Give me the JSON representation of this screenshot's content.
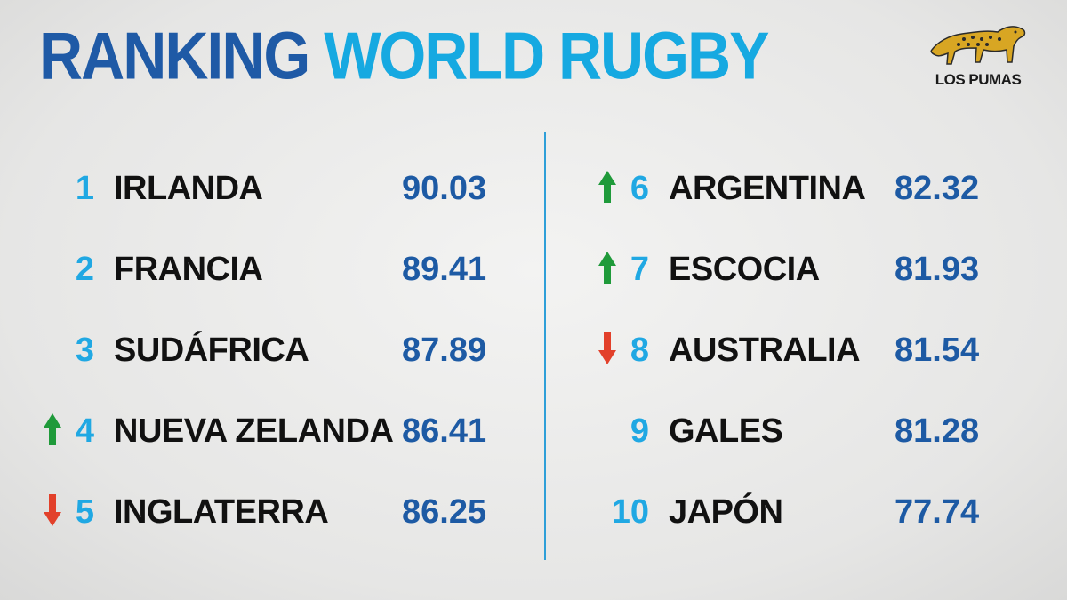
{
  "title": {
    "part1": "RANKING",
    "part2": "WORLD RUGBY"
  },
  "logo": {
    "text": "LOS PUMAS"
  },
  "colors": {
    "up": "#1f9a3a",
    "down": "#e2402a",
    "rank": "#20a8e3",
    "points": "#1d5aa4",
    "title_dark": "#1f5aa6",
    "title_light": "#16a9e1"
  },
  "left": [
    {
      "rank": "1",
      "team": "IRLANDA",
      "points": "90.03",
      "trend": "none"
    },
    {
      "rank": "2",
      "team": "FRANCIA",
      "points": "89.41",
      "trend": "none"
    },
    {
      "rank": "3",
      "team": "SUDÁFRICA",
      "points": "87.89",
      "trend": "none"
    },
    {
      "rank": "4",
      "team": "NUEVA ZELANDA",
      "points": "86.41",
      "trend": "up"
    },
    {
      "rank": "5",
      "team": "INGLATERRA",
      "points": "86.25",
      "trend": "down"
    }
  ],
  "right": [
    {
      "rank": "6",
      "team": "ARGENTINA",
      "points": "82.32",
      "trend": "up"
    },
    {
      "rank": "7",
      "team": "ESCOCIA",
      "points": "81.93",
      "trend": "up"
    },
    {
      "rank": "8",
      "team": "AUSTRALIA",
      "points": "81.54",
      "trend": "down"
    },
    {
      "rank": "9",
      "team": "GALES",
      "points": "81.28",
      "trend": "none"
    },
    {
      "rank": "10",
      "team": "JAPÓN",
      "points": "77.74",
      "trend": "none"
    }
  ]
}
